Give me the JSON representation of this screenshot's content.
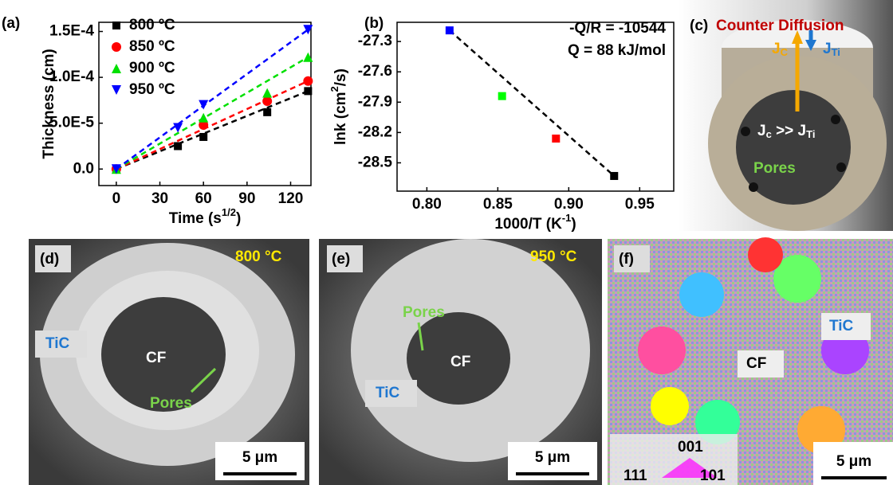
{
  "chart_data": [
    {
      "type": "scatter",
      "panel_label": "(a)",
      "x_label": {
        "text": "Time (s",
        "sup": "1/2",
        "end": ")"
      },
      "y_label": "Thickness (cm)",
      "x": [
        0,
        42.4,
        60,
        103.9,
        132
      ],
      "series": [
        {
          "name": "800 ºC",
          "color": "#000000",
          "marker": "square",
          "values": [
            0,
            2.5e-05,
            3.5e-05,
            6.2e-05,
            8.5e-05
          ]
        },
        {
          "name": "850 ºC",
          "color": "#ff0000",
          "marker": "circle",
          "values": [
            0,
            null,
            4.8e-05,
            7.4e-05,
            9.6e-05
          ]
        },
        {
          "name": "900 ºC",
          "color": "#00e000",
          "marker": "triangle-up",
          "values": [
            0,
            null,
            5.6e-05,
            8.3e-05,
            0.000122
          ]
        },
        {
          "name": "950 ºC",
          "color": "#0000ff",
          "marker": "triangle-down",
          "values": [
            0,
            4.5e-05,
            7e-05,
            null,
            0.000152
          ]
        }
      ],
      "xlim": [
        -12,
        134
      ],
      "xticks": [
        0,
        30,
        60,
        90,
        120
      ],
      "ylim": [
        -1.8e-05,
        0.00016
      ],
      "yticks": [
        {
          "value": 0,
          "label": "0.0"
        },
        {
          "value": 5e-05,
          "label": "5.0E-5"
        },
        {
          "value": 0.0001,
          "label": "1.0E-4"
        },
        {
          "value": 0.00015,
          "label": "1.5E-4"
        }
      ],
      "fit": true,
      "legend": "top-left"
    },
    {
      "type": "scatter",
      "panel_label": "(b)",
      "x_label": {
        "text": "1000/T (K",
        "sup": "-1",
        "end": ")"
      },
      "y_label": {
        "text": "lnk (cm",
        "sup": "2",
        "end": "/s)"
      },
      "x": [
        0.816,
        0.853,
        0.891,
        0.932
      ],
      "values": [
        -27.19,
        -27.84,
        -28.26,
        -28.63
      ],
      "colors": [
        "#0000ff",
        "#00ff00",
        "#ff0000",
        "#000000"
      ],
      "xlim": [
        0.779,
        0.974
      ],
      "xticks": [
        {
          "value": 0.8,
          "label": "0.80"
        },
        0.85,
        {
          "value": 0.9,
          "label": "0.90"
        },
        0.95
      ],
      "ylim": [
        -28.78,
        -27.11
      ],
      "yticks": [
        -27.3,
        -27.6,
        -27.9,
        -28.2,
        -28.5
      ],
      "annotations": [
        "-Q/R = -10544",
        "Q = 88 kJ/mol"
      ],
      "fit": true
    }
  ],
  "panels": {
    "c": {
      "label": "(c)",
      "title": "Counter Diffusion",
      "jc": "J",
      "jc_sub": "C",
      "jti": "J",
      "jti_sub": "Ti",
      "rel_j": "J",
      "rel_c": "c",
      "rel_mid": " >> J",
      "rel_ti": "Ti",
      "pores": "Pores"
    },
    "d": {
      "label": "(d)",
      "temp": "800 °C",
      "tic": "TiC",
      "cf": "CF",
      "pores": "Pores",
      "scale": "5 μm"
    },
    "e": {
      "label": "(e)",
      "temp": "950 °C",
      "pores": "Pores",
      "cf": "CF",
      "tic": "TiC",
      "scale": "5 μm"
    },
    "f": {
      "label": "(f)",
      "tic": "TiC",
      "cf": "CF",
      "o001": "001",
      "o111": "111",
      "o101": "101",
      "scale": "5 μm"
    }
  }
}
